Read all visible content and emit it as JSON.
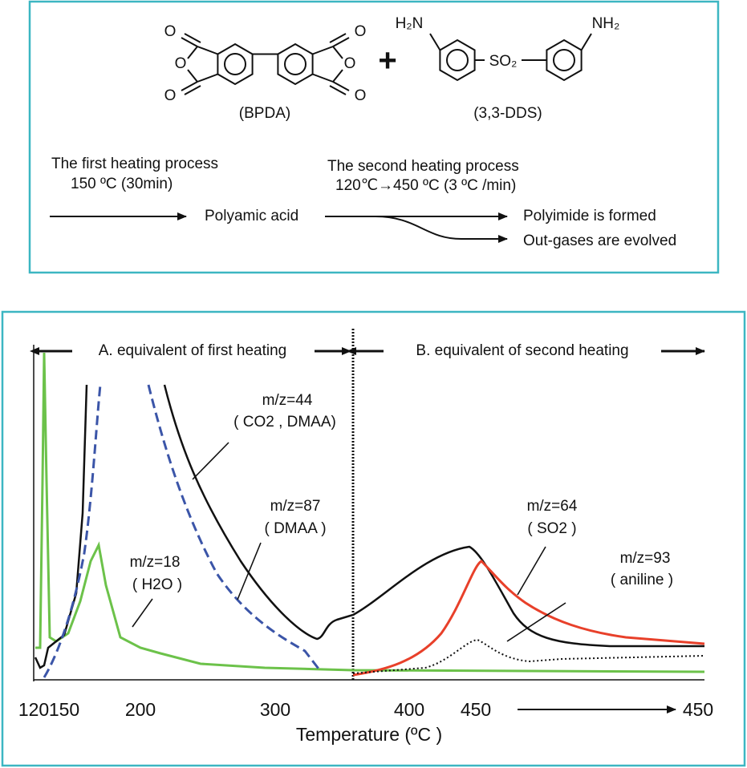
{
  "scheme": {
    "reactants": {
      "bpda": {
        "carbonyl_o": [
          "O",
          "O",
          "O",
          "O"
        ],
        "ring_o": [
          "O",
          "O"
        ],
        "label": "(BPDA)"
      },
      "plus": "+",
      "dds": {
        "amine_left": "H₂N",
        "amine_right": "NH₂",
        "bridge": "SO₂",
        "label": "(3,3-DDS)"
      }
    },
    "first_heating": {
      "title": "The first heating process",
      "condition": "150 ºC (30min)"
    },
    "intermediate": "Polyamic acid",
    "second_heating": {
      "title": "The second heating process",
      "condition": "120℃→450 ºC (3 ºC /min)"
    },
    "outcomes": [
      "Polyimide is formed",
      "Out-gases are evolved"
    ]
  },
  "chart": {
    "regions": [
      "A. equivalent of first heating",
      "B. equivalent of second heating"
    ],
    "curve_labels": [
      {
        "mz": "m/z=44",
        "species": "( CO2 , DMAA)"
      },
      {
        "mz": "m/z=87",
        "species": "( DMAA )"
      },
      {
        "mz": "m/z=18",
        "species": "( H2O )"
      },
      {
        "mz": "m/z=64",
        "species": "( SO2 )"
      },
      {
        "mz": "m/z=93",
        "species": "( aniline )"
      }
    ],
    "x_tick_labels": [
      "120",
      "150",
      "200",
      "300",
      "400",
      "450",
      "450"
    ],
    "x_label": "Temperature (ºC )"
  }
}
